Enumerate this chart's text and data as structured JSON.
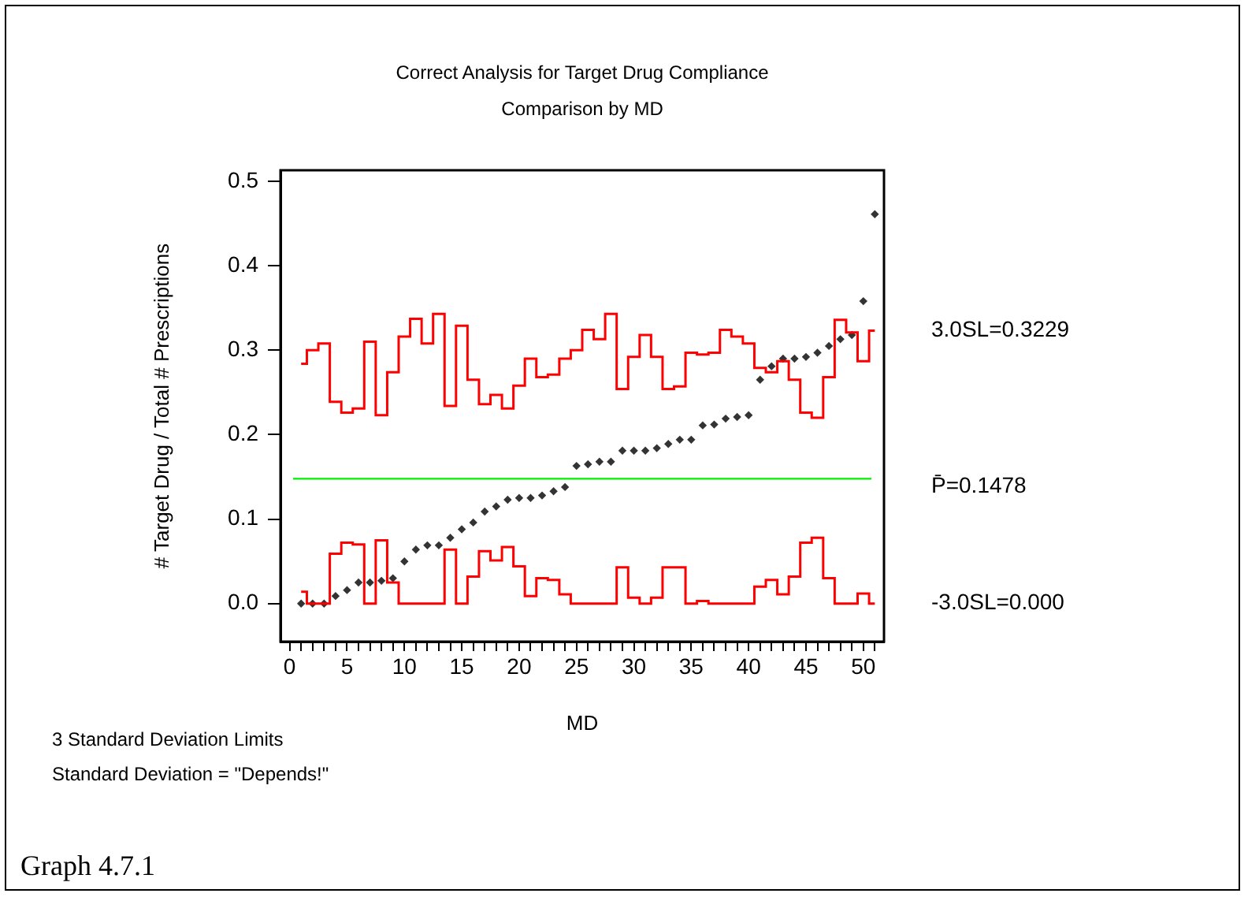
{
  "chart_data": {
    "type": "scatter",
    "title": "Correct Analysis for Target Drug Compliance",
    "subtitle": "Comparison by MD",
    "xlabel": "MD",
    "ylabel": "# Target Drug / Total # Prescriptions",
    "xlim": [
      -0.8,
      51.8
    ],
    "ylim": [
      -0.045,
      0.513
    ],
    "xticks": [
      0,
      {
        "value": 1,
        "label": null
      },
      {
        "value": 2,
        "label": null
      },
      {
        "value": 3,
        "label": null
      },
      {
        "value": 4,
        "label": null
      },
      5,
      {
        "value": 6,
        "label": null
      },
      {
        "value": 7,
        "label": null
      },
      {
        "value": 8,
        "label": null
      },
      {
        "value": 9,
        "label": null
      },
      10,
      {
        "value": 11,
        "label": null
      },
      {
        "value": 12,
        "label": null
      },
      {
        "value": 13,
        "label": null
      },
      {
        "value": 14,
        "label": null
      },
      15,
      {
        "value": 16,
        "label": null
      },
      {
        "value": 17,
        "label": null
      },
      {
        "value": 18,
        "label": null
      },
      {
        "value": 19,
        "label": null
      },
      20,
      {
        "value": 21,
        "label": null
      },
      {
        "value": 22,
        "label": null
      },
      {
        "value": 23,
        "label": null
      },
      {
        "value": 24,
        "label": null
      },
      25,
      {
        "value": 26,
        "label": null
      },
      {
        "value": 27,
        "label": null
      },
      {
        "value": 28,
        "label": null
      },
      {
        "value": 29,
        "label": null
      },
      30,
      {
        "value": 31,
        "label": null
      },
      {
        "value": 32,
        "label": null
      },
      {
        "value": 33,
        "label": null
      },
      {
        "value": 34,
        "label": null
      },
      35,
      {
        "value": 36,
        "label": null
      },
      {
        "value": 37,
        "label": null
      },
      {
        "value": 38,
        "label": null
      },
      {
        "value": 39,
        "label": null
      },
      40,
      {
        "value": 41,
        "label": null
      },
      {
        "value": 42,
        "label": null
      },
      {
        "value": 43,
        "label": null
      },
      {
        "value": 44,
        "label": null
      },
      45,
      {
        "value": 46,
        "label": null
      },
      {
        "value": 47,
        "label": null
      },
      {
        "value": 48,
        "label": null
      },
      {
        "value": 49,
        "label": null
      },
      50,
      {
        "value": 51,
        "label": null
      }
    ],
    "yticks": [
      {
        "value": 0,
        "label": "0.0"
      },
      0.1,
      0.2,
      0.3,
      0.4,
      0.5
    ],
    "x": [
      1,
      2,
      3,
      4,
      5,
      6,
      7,
      8,
      9,
      10,
      11,
      12,
      13,
      14,
      15,
      16,
      17,
      18,
      19,
      20,
      21,
      22,
      23,
      24,
      25,
      26,
      27,
      28,
      29,
      30,
      31,
      32,
      33,
      34,
      35,
      36,
      37,
      38,
      39,
      40,
      41,
      42,
      43,
      44,
      45,
      46,
      47,
      48,
      49,
      50,
      51
    ],
    "series": [
      {
        "type": "step",
        "color": "#ff0000",
        "values": [
          0.284,
          0.3,
          0.308,
          0.239,
          0.226,
          0.231,
          0.31,
          0.223,
          0.274,
          0.316,
          0.337,
          0.308,
          0.343,
          0.234,
          0.329,
          0.265,
          0.236,
          0.247,
          0.231,
          0.258,
          0.29,
          0.268,
          0.271,
          0.29,
          0.3,
          0.324,
          0.313,
          0.343,
          0.254,
          0.292,
          0.318,
          0.292,
          0.254,
          0.257,
          0.297,
          0.295,
          0.297,
          0.324,
          0.316,
          0.308,
          0.279,
          0.274,
          0.287,
          0.265,
          0.226,
          0.22,
          0.268,
          0.336,
          0.321,
          0.287,
          0.323
        ]
      },
      {
        "type": "step",
        "color": "#ff0000",
        "values": [
          0.014,
          0,
          0,
          0.059,
          0.072,
          0.07,
          0,
          0.075,
          0.025,
          0,
          0,
          0,
          0,
          0.064,
          0,
          0.032,
          0.062,
          0.051,
          0.067,
          0.044,
          0.009,
          0.03,
          0.028,
          0.011,
          0,
          0,
          0,
          0,
          0.043,
          0.007,
          0,
          0.007,
          0.043,
          0.043,
          0,
          0.003,
          0,
          0,
          0,
          0,
          0.02,
          0.028,
          0.011,
          0.032,
          0.072,
          0.078,
          0.03,
          0,
          0,
          0.012,
          0
        ]
      },
      {
        "type": "scatter",
        "color": "#333333",
        "marker": "diamond",
        "values": [
          0,
          0,
          0,
          0.009,
          0.016,
          0.025,
          0.025,
          0.027,
          0.03,
          0.05,
          0.064,
          0.069,
          0.069,
          0.078,
          0.088,
          0.096,
          0.109,
          0.115,
          0.123,
          0.125,
          0.125,
          0.128,
          0.133,
          0.138,
          0.163,
          0.165,
          0.168,
          0.168,
          0.181,
          0.181,
          0.181,
          0.184,
          0.189,
          0.194,
          0.194,
          0.211,
          0.212,
          0.219,
          0.221,
          0.223,
          0.265,
          0.281,
          0.29,
          0.29,
          0.292,
          0.297,
          0.305,
          0.313,
          0.318,
          0.358,
          0.461
        ]
      }
    ],
    "ref_lines": [
      {
        "axis": "y",
        "value": 0.1478,
        "label": "P̄=0.1478",
        "color": "#00ee00"
      }
    ],
    "annotations": [
      "3.0SL=0.3229",
      "-3.0SL=0.000",
      "3 Standard Deviation Limits",
      "Standard Deviation = \"Depends!\"",
      "Graph 4.7.1"
    ],
    "grid": false,
    "legend": false
  }
}
